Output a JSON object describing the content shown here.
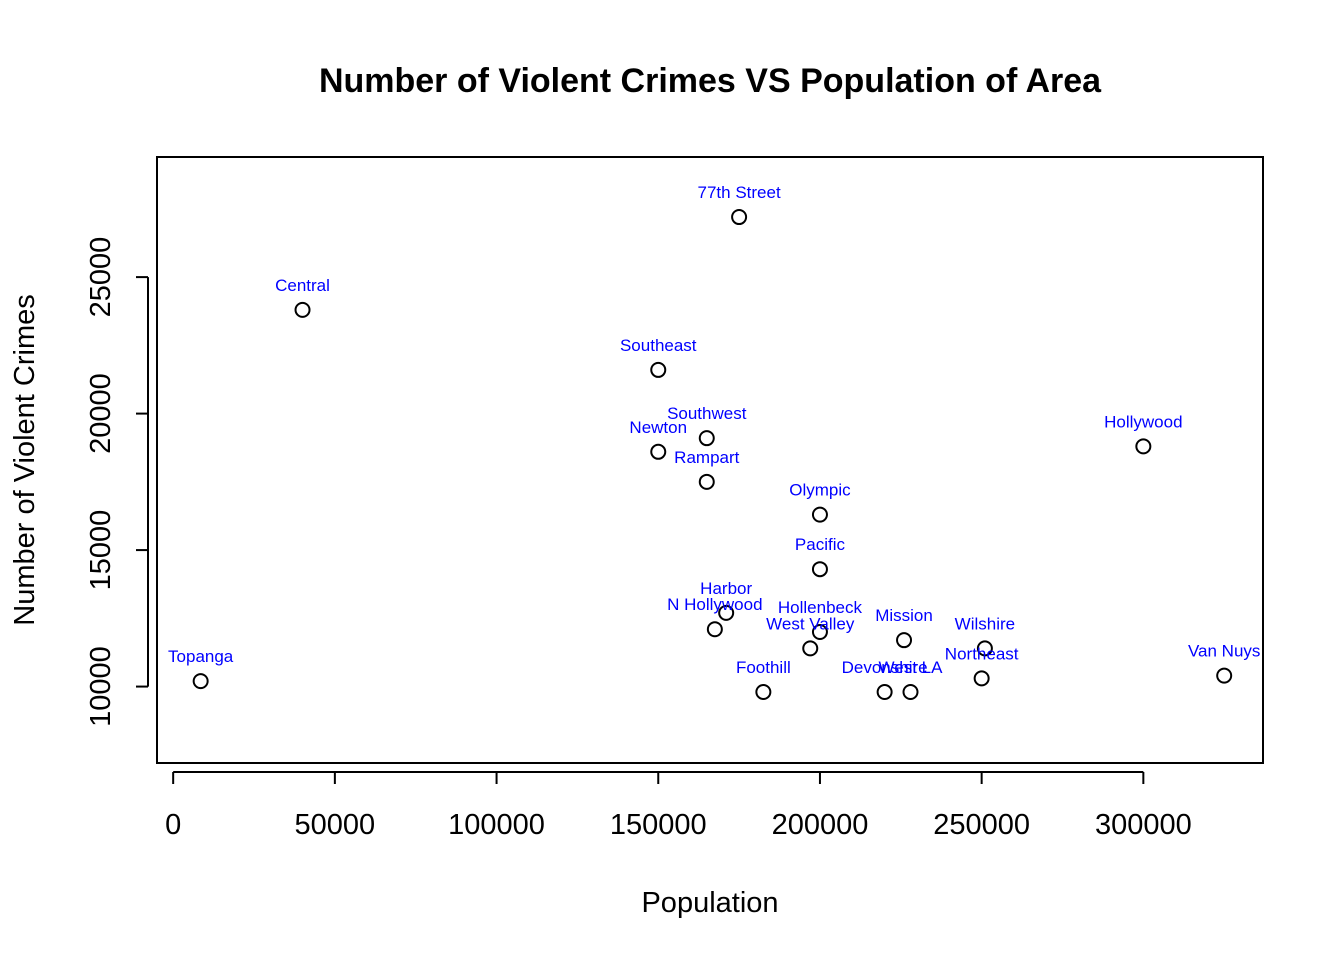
{
  "chart_data": {
    "type": "scatter",
    "title": "Number of Violent Crimes VS Population of Area",
    "xlabel": "Population",
    "ylabel": "Number of Violent Crimes",
    "xlim": [
      -5000,
      337000
    ],
    "ylim": [
      7200,
      29400
    ],
    "xticks": [
      0,
      50000,
      100000,
      150000,
      200000,
      250000,
      300000
    ],
    "yticks": [
      10000,
      15000,
      20000,
      25000
    ],
    "grid": false,
    "label_color": "#0000ff",
    "point_color": "#000000",
    "points": [
      {
        "label": "77th Street",
        "x": 175000,
        "y": 27200
      },
      {
        "label": "Central",
        "x": 40000,
        "y": 23800
      },
      {
        "label": "Southeast",
        "x": 150000,
        "y": 21600
      },
      {
        "label": "Southwest",
        "x": 165000,
        "y": 19100
      },
      {
        "label": "Newton",
        "x": 150000,
        "y": 18600
      },
      {
        "label": "Hollywood",
        "x": 300000,
        "y": 18800
      },
      {
        "label": "Rampart",
        "x": 165000,
        "y": 17500
      },
      {
        "label": "Olympic",
        "x": 200000,
        "y": 16300
      },
      {
        "label": "Pacific",
        "x": 200000,
        "y": 14300
      },
      {
        "label": "Harbor",
        "x": 171000,
        "y": 12700
      },
      {
        "label": "N Hollywood",
        "x": 167500,
        "y": 12100
      },
      {
        "label": "Hollenbeck",
        "x": 200000,
        "y": 12000
      },
      {
        "label": "West Valley",
        "x": 197000,
        "y": 11400
      },
      {
        "label": "Mission",
        "x": 226000,
        "y": 11700
      },
      {
        "label": "Wilshire",
        "x": 251000,
        "y": 11400
      },
      {
        "label": "Northeast",
        "x": 250000,
        "y": 10300
      },
      {
        "label": "Van Nuys",
        "x": 325000,
        "y": 10400
      },
      {
        "label": "Topanga",
        "x": 8500,
        "y": 10200
      },
      {
        "label": "Foothill",
        "x": 182500,
        "y": 9800
      },
      {
        "label": "Devonshire",
        "x": 220000,
        "y": 9800
      },
      {
        "label": "West LA",
        "x": 228000,
        "y": 9800
      }
    ]
  }
}
